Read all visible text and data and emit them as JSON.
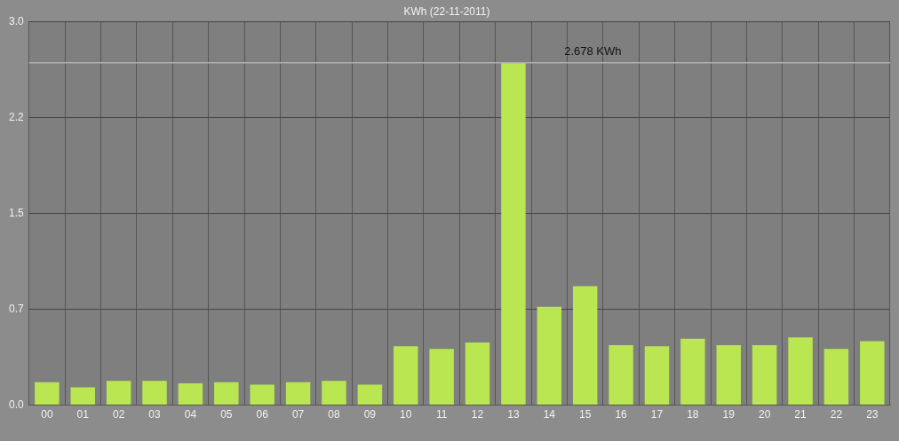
{
  "chart_data": {
    "type": "bar",
    "title": "KWh (22-11-2011)",
    "categories": [
      "00",
      "01",
      "02",
      "03",
      "04",
      "05",
      "06",
      "07",
      "08",
      "09",
      "10",
      "11",
      "12",
      "13",
      "14",
      "15",
      "16",
      "17",
      "18",
      "19",
      "20",
      "21",
      "22",
      "23"
    ],
    "values": [
      0.18,
      0.14,
      0.19,
      0.19,
      0.17,
      0.18,
      0.16,
      0.18,
      0.19,
      0.16,
      0.46,
      0.44,
      0.49,
      2.678,
      0.77,
      0.93,
      0.47,
      0.46,
      0.52,
      0.47,
      0.47,
      0.53,
      0.44,
      0.5
    ],
    "color": "#b9e651",
    "ylim": [
      0,
      3
    ],
    "yticks": [
      {
        "value": 0,
        "label": "0.0"
      },
      {
        "value": 0.75,
        "label": "0.7"
      },
      1.5,
      {
        "value": 2.25,
        "label": "2.2"
      },
      {
        "value": 3,
        "label": "3.0"
      }
    ],
    "grid": true,
    "ref_lines": [
      {
        "axis": "y",
        "value": 2.678,
        "label": "2.678 KWh",
        "color": "#b0b0b0"
      }
    ]
  }
}
